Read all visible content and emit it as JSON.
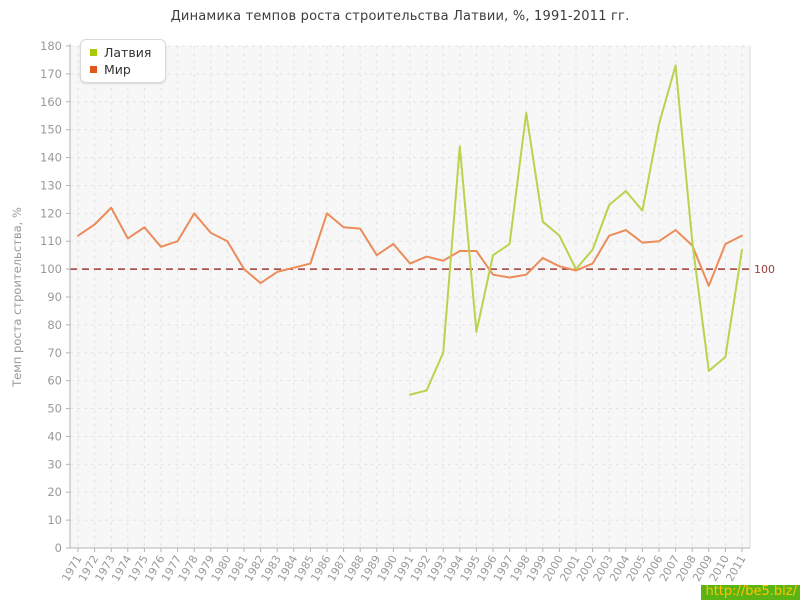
{
  "title": "Динамика темпов роста строительства Латвии, %, 1991-2011 гг.",
  "legend": {
    "items": [
      {
        "label": "Латвия",
        "color": "#aac800"
      },
      {
        "label": "Мир",
        "color": "#e0571d"
      }
    ]
  },
  "watermark": {
    "label": "http://be5.biz/",
    "bg": "#5cb414",
    "fg": "#ffc400"
  },
  "chart_data": {
    "type": "line",
    "title": "Динамика темпов роста строительства Латвии, %, 1991-2011 гг.",
    "xlabel": "",
    "ylabel": "Темп роста строительства, %",
    "ylim": [
      0,
      180
    ],
    "yticks": [
      0,
      10,
      20,
      30,
      40,
      50,
      60,
      70,
      80,
      90,
      100,
      110,
      120,
      130,
      140,
      150,
      160,
      170,
      180
    ],
    "grid": true,
    "legend_position": "top-left",
    "reference_line": {
      "value": 100,
      "label": "100",
      "color": "#9e3a3a",
      "style": "dashed"
    },
    "categories": [
      "1971",
      "1972",
      "1973",
      "1974",
      "1975",
      "1976",
      "1977",
      "1978",
      "1979",
      "1980",
      "1981",
      "1982",
      "1983",
      "1984",
      "1985",
      "1986",
      "1987",
      "1988",
      "1989",
      "1990",
      "1991",
      "1992",
      "1993",
      "1994",
      "1995",
      "1996",
      "1997",
      "1998",
      "1999",
      "2000",
      "2001",
      "2002",
      "2003",
      "2004",
      "2005",
      "2006",
      "2007",
      "2008",
      "2009",
      "2010",
      "2011"
    ],
    "series": [
      {
        "name": "Латвия",
        "line_color": "#b8d44c",
        "swatch_color": "#aac800",
        "values": [
          null,
          null,
          null,
          null,
          null,
          null,
          null,
          null,
          null,
          null,
          null,
          null,
          null,
          null,
          null,
          null,
          null,
          null,
          null,
          null,
          55,
          56.5,
          70,
          144,
          77.5,
          105,
          109,
          156,
          117,
          112,
          100,
          107,
          123,
          128,
          121,
          152,
          173,
          110,
          63.5,
          68.5,
          107
        ]
      },
      {
        "name": "Мир",
        "line_color": "#ec8c5a",
        "swatch_color": "#e0571d",
        "values": [
          112,
          116,
          122,
          111,
          115,
          108,
          110,
          120,
          113,
          110,
          100,
          95,
          99,
          100.5,
          102,
          120,
          115,
          114.5,
          105,
          109,
          102,
          104.5,
          103,
          106.5,
          106.5,
          98,
          97,
          98,
          104,
          101,
          99.5,
          102,
          112,
          114,
          109.5,
          110,
          114,
          108.5,
          94,
          109,
          112
        ]
      }
    ]
  }
}
